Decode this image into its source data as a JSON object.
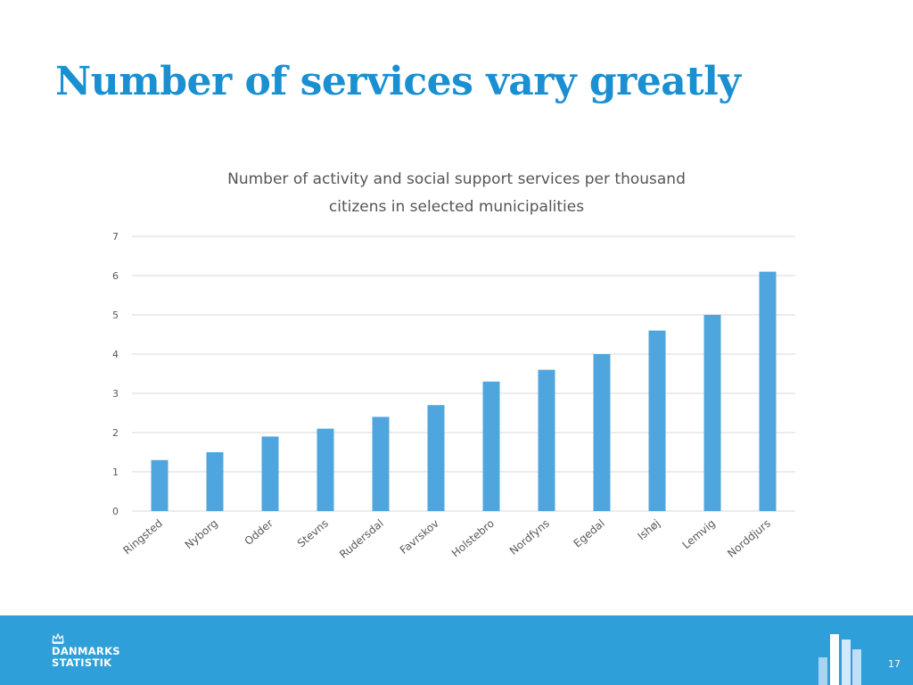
{
  "slide": {
    "title": "Number of services vary greatly",
    "page_number": "17"
  },
  "logo": {
    "line1": "DANMARKS",
    "line2": "STATISTIK"
  },
  "colors": {
    "title": "#1a8fd1",
    "bar": "#4fa6de",
    "footer": "#2e9fd8"
  },
  "chart_data": {
    "type": "bar",
    "title_lines": [
      "Number of activity and social support services per thousand",
      "citizens in selected municipalities"
    ],
    "categories": [
      "Ringsted",
      "Nyborg",
      "Odder",
      "Stevns",
      "Rudersdal",
      "Favrskov",
      "Holstebro",
      "Nordfyns",
      "Egedal",
      "Ishøj",
      "Lemvig",
      "Norddjurs"
    ],
    "values": [
      1.3,
      1.5,
      1.9,
      2.1,
      2.4,
      2.7,
      3.3,
      3.6,
      4.0,
      4.6,
      5.0,
      6.1
    ],
    "yticks": [
      0,
      1,
      2,
      3,
      4,
      5,
      6,
      7
    ],
    "ylim": [
      0,
      7
    ],
    "xlabel": "",
    "ylabel": "",
    "grid": true,
    "legend": "none"
  }
}
